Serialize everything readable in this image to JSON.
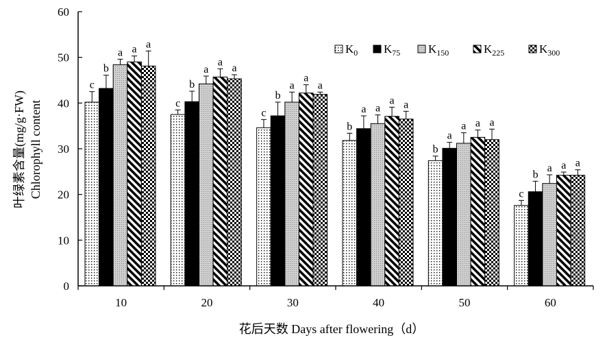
{
  "chart_data": {
    "type": "bar",
    "xlabel": "花后天数 Days after flowering（d）",
    "ylabel_cn": "叶绿素含量(mg/g·FW)",
    "ylabel_en": "Chlorophyll content",
    "ylim": [
      0,
      60
    ],
    "yticks": [
      "0",
      "10",
      "20",
      "30",
      "40",
      "50",
      "60"
    ],
    "categories": [
      "10",
      "20",
      "30",
      "40",
      "50",
      "60"
    ],
    "legend_position": "top-right",
    "series": [
      {
        "name": "K0",
        "base": "K",
        "sub": "0",
        "pattern": "dots",
        "values": [
          40.2,
          37.5,
          34.6,
          31.8,
          27.4,
          17.6
        ],
        "errors": [
          2.3,
          1.0,
          1.8,
          1.6,
          1.0,
          1.1
        ],
        "letters": [
          "c",
          "c",
          "c",
          "b",
          "b",
          "c"
        ]
      },
      {
        "name": "K75",
        "base": "K",
        "sub": "75",
        "pattern": "solid",
        "values": [
          43.2,
          40.3,
          37.2,
          34.4,
          30.1,
          20.6
        ],
        "errors": [
          2.9,
          2.3,
          3.0,
          2.8,
          1.3,
          2.3
        ],
        "letters": [
          "b",
          "b",
          "b",
          "a",
          "a",
          "b"
        ]
      },
      {
        "name": "K150",
        "base": "K",
        "sub": "150",
        "pattern": "grid",
        "values": [
          48.4,
          44.2,
          40.2,
          35.5,
          31.2,
          22.4
        ],
        "errors": [
          1.2,
          1.7,
          2.2,
          1.9,
          2.3,
          1.9
        ],
        "letters": [
          "a",
          "a",
          "a",
          "a",
          "a",
          "a"
        ]
      },
      {
        "name": "K225",
        "base": "K",
        "sub": "225",
        "pattern": "diagonal",
        "values": [
          49.0,
          45.7,
          42.2,
          37.1,
          32.5,
          24.2
        ],
        "errors": [
          1.3,
          1.8,
          1.8,
          2.0,
          1.6,
          0.7
        ],
        "letters": [
          "a",
          "a",
          "a",
          "a",
          "a",
          "a"
        ]
      },
      {
        "name": "K300",
        "base": "K",
        "sub": "300",
        "pattern": "checker",
        "values": [
          48.1,
          45.3,
          41.9,
          36.5,
          32.0,
          24.2
        ],
        "errors": [
          3.3,
          0.9,
          0.5,
          1.7,
          2.3,
          1.2
        ],
        "letters": [
          "a",
          "a",
          "a",
          "a",
          "a",
          "a"
        ]
      }
    ]
  }
}
